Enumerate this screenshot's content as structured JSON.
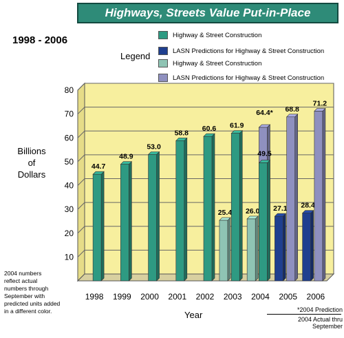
{
  "header": {
    "title": "Highways, Streets Value Put-in-Place",
    "range": "1998 - 2006"
  },
  "legend": {
    "title": "Legend",
    "items": [
      {
        "label": "Highway & Street Construction",
        "color": "#2e9a82"
      },
      {
        "label": "LASN Predictions for Highway & Street Construction",
        "color": "#1f3f8f"
      },
      {
        "label": "Highway & Street Construction",
        "color": "#8fc4b4"
      },
      {
        "label": "LASN Predictions for Highway & Street Construction",
        "color": "#8f90bf"
      }
    ]
  },
  "axis": {
    "ylabel_lines": [
      "Billions",
      "of",
      "Dollars"
    ],
    "xlabel": "Year"
  },
  "note_lines": [
    "2004 numbers",
    "reflect actual",
    "numbers through",
    "September with",
    "predicted units added",
    "in a different color."
  ],
  "footnote": {
    "line1": "*2004 Prediction",
    "line2": "2004 Actual thru September"
  },
  "chart_data": {
    "type": "bar",
    "categories": [
      "1998",
      "1999",
      "2000",
      "2001",
      "2002",
      "2003",
      "2004",
      "2005",
      "2006"
    ],
    "ylim": [
      0,
      80
    ],
    "yticks": [
      10,
      20,
      30,
      40,
      50,
      60,
      70,
      80
    ],
    "grid": true,
    "colors": {
      "highway": "#2e9a82",
      "lasn": "#1f3f8f",
      "highway_light": "#8fc4b4",
      "lasn_light": "#8f90bf",
      "plot_bg": "#f7ef9e"
    },
    "series": [
      {
        "name": "Highway & Street Construction",
        "values": [
          44.7,
          48.9,
          53.0,
          58.8,
          60.6,
          61.9,
          49.5,
          null,
          null
        ]
      },
      {
        "name": "LASN Predictions for Highway & Street Construction",
        "values": [
          null,
          null,
          null,
          null,
          null,
          null,
          64.4,
          68.8,
          71.2
        ]
      },
      {
        "name": "Highway & Street Construction",
        "values": [
          null,
          null,
          null,
          null,
          null,
          25.4,
          26.0,
          null,
          null
        ]
      },
      {
        "name": "LASN Predictions for Highway & Street Construction",
        "values": [
          null,
          null,
          null,
          null,
          null,
          null,
          null,
          27.1,
          28.4
        ]
      }
    ],
    "labels": {
      "44.7": "44.7",
      "48.9": "48.9",
      "53.0": "53.0",
      "58.8": "58.8",
      "60.6": "60.6",
      "61.9": "61.9",
      "64.4": "64.4*",
      "49.5": "49.5",
      "68.8": "68.8",
      "71.2": "71.2",
      "25.4": "25.4",
      "26.0": "26.0",
      "27.1": "27.1",
      "28.4": "28.4"
    }
  }
}
